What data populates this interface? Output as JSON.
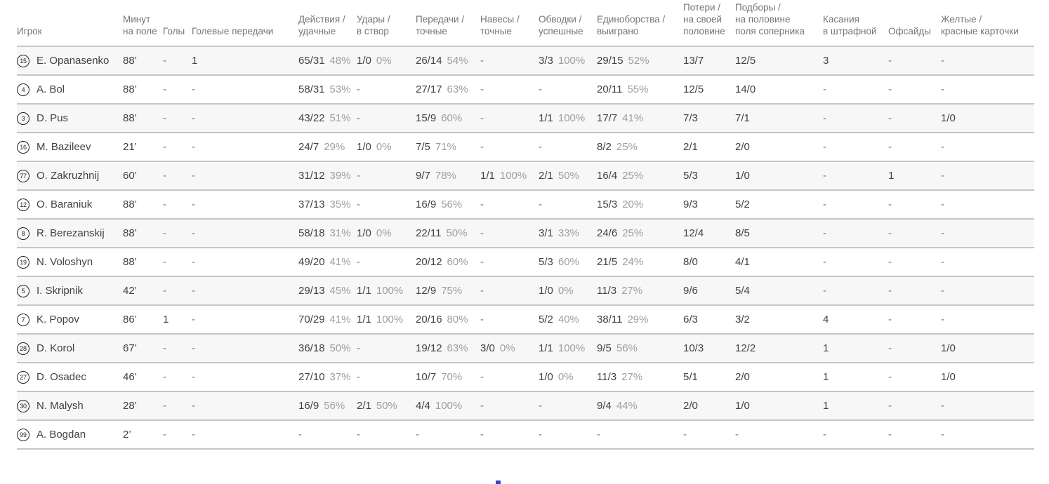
{
  "colors": {
    "row_alt_background": "#f7f7f7",
    "separator": "#c6c6c6",
    "header_text": "#757575",
    "value_text": "#424242",
    "percent_text": "#9e9e9e",
    "cutoff_element": "#3b41c5"
  },
  "table": {
    "columns": [
      {
        "key": "player",
        "label": "Игрок"
      },
      {
        "key": "minutes",
        "label": "Минут\nна поле"
      },
      {
        "key": "goals",
        "label": "Голы"
      },
      {
        "key": "assists",
        "label": "Голевые передачи"
      },
      {
        "key": "actions",
        "label": "Действия /\nудачные"
      },
      {
        "key": "shots",
        "label": "Удары /\nв створ"
      },
      {
        "key": "passes",
        "label": "Передачи /\nточные"
      },
      {
        "key": "crosses",
        "label": "Навесы /\nточные"
      },
      {
        "key": "dribbles",
        "label": "Обводки /\nуспешные"
      },
      {
        "key": "duels",
        "label": "Единоборства /\nвыиграно"
      },
      {
        "key": "losses",
        "label": "Потери /\nна своей\nполовине"
      },
      {
        "key": "recoveries",
        "label": "Подборы /\nна половине\nполя соперника"
      },
      {
        "key": "touches",
        "label": "Касания\nв штрафной"
      },
      {
        "key": "offsides",
        "label": "Офсайды"
      },
      {
        "key": "cards",
        "label": "Желтые /\nкрасные карточки"
      }
    ],
    "rows": [
      {
        "number": "15",
        "name": "E. Opanasenko",
        "minutes": "88’",
        "goals": "-",
        "assists": "1",
        "actions": {
          "v": "65/31",
          "p": "48%"
        },
        "shots": {
          "v": "1/0",
          "p": "0%"
        },
        "passes": {
          "v": "26/14",
          "p": "54%"
        },
        "crosses": "-",
        "dribbles": {
          "v": "3/3",
          "p": "100%"
        },
        "duels": {
          "v": "29/15",
          "p": "52%"
        },
        "losses": "13/7",
        "recoveries": "12/5",
        "touches": "3",
        "offsides": "-",
        "cards": "-"
      },
      {
        "number": "4",
        "name": "A. Bol",
        "minutes": "88’",
        "goals": "-",
        "assists": "-",
        "actions": {
          "v": "58/31",
          "p": "53%"
        },
        "shots": "-",
        "passes": {
          "v": "27/17",
          "p": "63%"
        },
        "crosses": "-",
        "dribbles": "-",
        "duels": {
          "v": "20/11",
          "p": "55%"
        },
        "losses": "12/5",
        "recoveries": "14/0",
        "touches": "-",
        "offsides": "-",
        "cards": "-"
      },
      {
        "number": "3",
        "name": "D. Pus",
        "minutes": "88’",
        "goals": "-",
        "assists": "-",
        "actions": {
          "v": "43/22",
          "p": "51%"
        },
        "shots": "-",
        "passes": {
          "v": "15/9",
          "p": "60%"
        },
        "crosses": "-",
        "dribbles": {
          "v": "1/1",
          "p": "100%"
        },
        "duels": {
          "v": "17/7",
          "p": "41%"
        },
        "losses": "7/3",
        "recoveries": "7/1",
        "touches": "-",
        "offsides": "-",
        "cards": "1/0"
      },
      {
        "number": "16",
        "name": "M. Bazileev",
        "minutes": "21’",
        "goals": "-",
        "assists": "-",
        "actions": {
          "v": "24/7",
          "p": "29%"
        },
        "shots": {
          "v": "1/0",
          "p": "0%"
        },
        "passes": {
          "v": "7/5",
          "p": "71%"
        },
        "crosses": "-",
        "dribbles": "-",
        "duels": {
          "v": "8/2",
          "p": "25%"
        },
        "losses": "2/1",
        "recoveries": "2/0",
        "touches": "-",
        "offsides": "-",
        "cards": "-"
      },
      {
        "number": "77",
        "name": "O. Zakruzhnij",
        "minutes": "60’",
        "goals": "-",
        "assists": "-",
        "actions": {
          "v": "31/12",
          "p": "39%"
        },
        "shots": "-",
        "passes": {
          "v": "9/7",
          "p": "78%"
        },
        "crosses": {
          "v": "1/1",
          "p": "100%"
        },
        "dribbles": {
          "v": "2/1",
          "p": "50%"
        },
        "duels": {
          "v": "16/4",
          "p": "25%"
        },
        "losses": "5/3",
        "recoveries": "1/0",
        "touches": "-",
        "offsides": "1",
        "cards": "-"
      },
      {
        "number": "12",
        "name": "O. Baraniuk",
        "minutes": "88’",
        "goals": "-",
        "assists": "-",
        "actions": {
          "v": "37/13",
          "p": "35%"
        },
        "shots": "-",
        "passes": {
          "v": "16/9",
          "p": "56%"
        },
        "crosses": "-",
        "dribbles": "-",
        "duels": {
          "v": "15/3",
          "p": "20%"
        },
        "losses": "9/3",
        "recoveries": "5/2",
        "touches": "-",
        "offsides": "-",
        "cards": "-"
      },
      {
        "number": "8",
        "name": "R. Berezanskij",
        "minutes": "88’",
        "goals": "-",
        "assists": "-",
        "actions": {
          "v": "58/18",
          "p": "31%"
        },
        "shots": {
          "v": "1/0",
          "p": "0%"
        },
        "passes": {
          "v": "22/11",
          "p": "50%"
        },
        "crosses": "-",
        "dribbles": {
          "v": "3/1",
          "p": "33%"
        },
        "duels": {
          "v": "24/6",
          "p": "25%"
        },
        "losses": "12/4",
        "recoveries": "8/5",
        "touches": "-",
        "offsides": "-",
        "cards": "-"
      },
      {
        "number": "19",
        "name": "N. Voloshyn",
        "minutes": "88’",
        "goals": "-",
        "assists": "-",
        "actions": {
          "v": "49/20",
          "p": "41%"
        },
        "shots": "-",
        "passes": {
          "v": "20/12",
          "p": "60%"
        },
        "crosses": "-",
        "dribbles": {
          "v": "5/3",
          "p": "60%"
        },
        "duels": {
          "v": "21/5",
          "p": "24%"
        },
        "losses": "8/0",
        "recoveries": "4/1",
        "touches": "-",
        "offsides": "-",
        "cards": "-"
      },
      {
        "number": "5",
        "name": "I. Skripnik",
        "minutes": "42’",
        "goals": "-",
        "assists": "-",
        "actions": {
          "v": "29/13",
          "p": "45%"
        },
        "shots": {
          "v": "1/1",
          "p": "100%"
        },
        "passes": {
          "v": "12/9",
          "p": "75%"
        },
        "crosses": "-",
        "dribbles": {
          "v": "1/0",
          "p": "0%"
        },
        "duels": {
          "v": "11/3",
          "p": "27%"
        },
        "losses": "9/6",
        "recoveries": "5/4",
        "touches": "-",
        "offsides": "-",
        "cards": "-"
      },
      {
        "number": "7",
        "name": "K. Popov",
        "minutes": "86’",
        "goals": "1",
        "assists": "-",
        "actions": {
          "v": "70/29",
          "p": "41%"
        },
        "shots": {
          "v": "1/1",
          "p": "100%"
        },
        "passes": {
          "v": "20/16",
          "p": "80%"
        },
        "crosses": "-",
        "dribbles": {
          "v": "5/2",
          "p": "40%"
        },
        "duels": {
          "v": "38/11",
          "p": "29%"
        },
        "losses": "6/3",
        "recoveries": "3/2",
        "touches": "4",
        "offsides": "-",
        "cards": "-"
      },
      {
        "number": "28",
        "name": "D. Korol",
        "minutes": "67’",
        "goals": "-",
        "assists": "-",
        "actions": {
          "v": "36/18",
          "p": "50%"
        },
        "shots": "-",
        "passes": {
          "v": "19/12",
          "p": "63%"
        },
        "crosses": {
          "v": "3/0",
          "p": "0%"
        },
        "dribbles": {
          "v": "1/1",
          "p": "100%"
        },
        "duels": {
          "v": "9/5",
          "p": "56%"
        },
        "losses": "10/3",
        "recoveries": "12/2",
        "touches": "1",
        "offsides": "-",
        "cards": "1/0"
      },
      {
        "number": "27",
        "name": "D. Osadec",
        "minutes": "46’",
        "goals": "-",
        "assists": "-",
        "actions": {
          "v": "27/10",
          "p": "37%"
        },
        "shots": "-",
        "passes": {
          "v": "10/7",
          "p": "70%"
        },
        "crosses": "-",
        "dribbles": {
          "v": "1/0",
          "p": "0%"
        },
        "duels": {
          "v": "11/3",
          "p": "27%"
        },
        "losses": "5/1",
        "recoveries": "2/0",
        "touches": "1",
        "offsides": "-",
        "cards": "1/0"
      },
      {
        "number": "30",
        "name": "N. Malysh",
        "minutes": "28’",
        "goals": "-",
        "assists": "-",
        "actions": {
          "v": "16/9",
          "p": "56%"
        },
        "shots": {
          "v": "2/1",
          "p": "50%"
        },
        "passes": {
          "v": "4/4",
          "p": "100%"
        },
        "crosses": "-",
        "dribbles": "-",
        "duels": {
          "v": "9/4",
          "p": "44%"
        },
        "losses": "2/0",
        "recoveries": "1/0",
        "touches": "1",
        "offsides": "-",
        "cards": "-"
      },
      {
        "number": "99",
        "name": "A. Bogdan",
        "minutes": "2’",
        "goals": "-",
        "assists": "-",
        "actions": "-",
        "shots": "-",
        "passes": "-",
        "crosses": "-",
        "dribbles": "-",
        "duels": "-",
        "losses": "-",
        "recoveries": "-",
        "touches": "-",
        "offsides": "-",
        "cards": "-"
      }
    ]
  }
}
